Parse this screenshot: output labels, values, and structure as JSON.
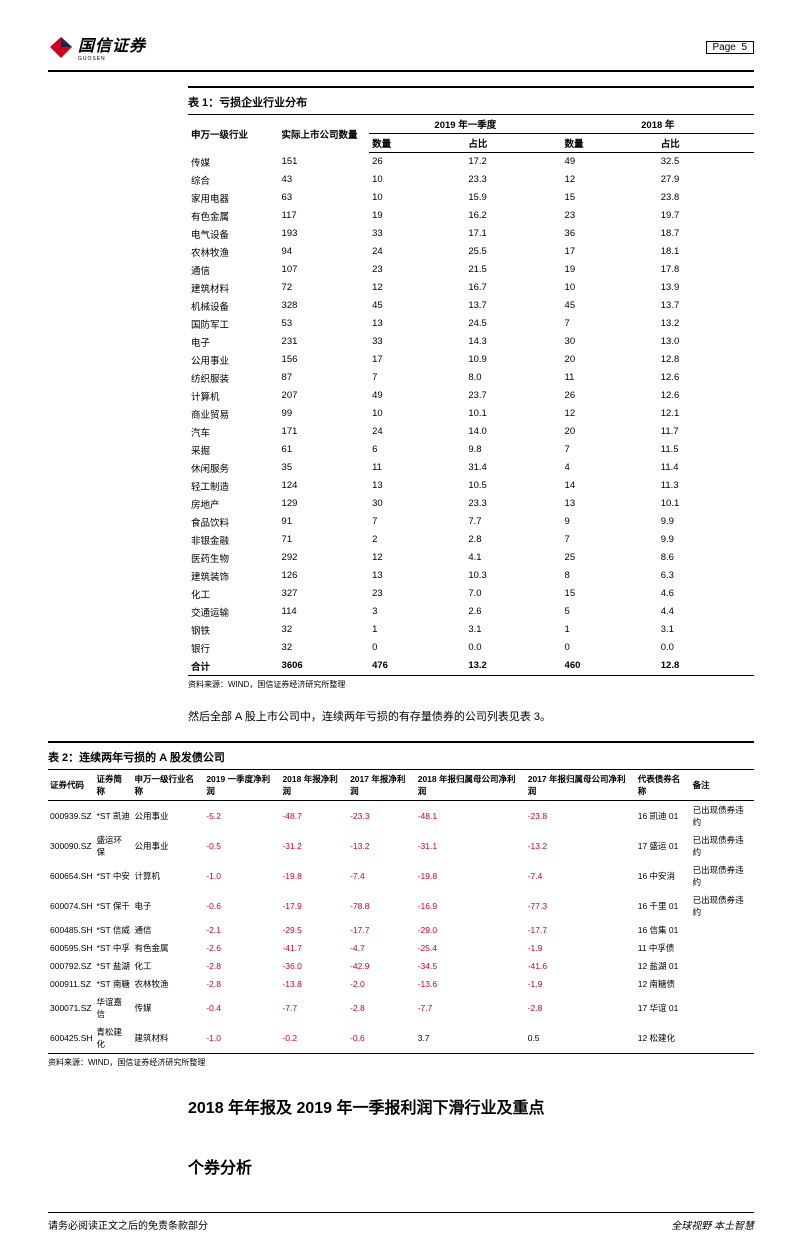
{
  "header": {
    "company": "国信证券",
    "pageLabel": "Page",
    "pageNum": "5",
    "sublabel": "GUOSEN"
  },
  "table1": {
    "title": "表 1：亏损企业行业分布",
    "col_industry": "申万一级行业",
    "col_listed": "实际上市公司数量",
    "group_2019": "2019 年一季度",
    "group_2018": "2018 年",
    "col_count": "数量",
    "col_ratio": "占比",
    "rows": [
      [
        "传媒",
        "151",
        "26",
        "17.2",
        "49",
        "32.5"
      ],
      [
        "综合",
        "43",
        "10",
        "23.3",
        "12",
        "27.9"
      ],
      [
        "家用电器",
        "63",
        "10",
        "15.9",
        "15",
        "23.8"
      ],
      [
        "有色金属",
        "117",
        "19",
        "16.2",
        "23",
        "19.7"
      ],
      [
        "电气设备",
        "193",
        "33",
        "17.1",
        "36",
        "18.7"
      ],
      [
        "农林牧渔",
        "94",
        "24",
        "25.5",
        "17",
        "18.1"
      ],
      [
        "通信",
        "107",
        "23",
        "21.5",
        "19",
        "17.8"
      ],
      [
        "建筑材料",
        "72",
        "12",
        "16.7",
        "10",
        "13.9"
      ],
      [
        "机械设备",
        "328",
        "45",
        "13.7",
        "45",
        "13.7"
      ],
      [
        "国防军工",
        "53",
        "13",
        "24.5",
        "7",
        "13.2"
      ],
      [
        "电子",
        "231",
        "33",
        "14.3",
        "30",
        "13.0"
      ],
      [
        "公用事业",
        "156",
        "17",
        "10.9",
        "20",
        "12.8"
      ],
      [
        "纺织服装",
        "87",
        "7",
        "8.0",
        "11",
        "12.6"
      ],
      [
        "计算机",
        "207",
        "49",
        "23.7",
        "26",
        "12.6"
      ],
      [
        "商业贸易",
        "99",
        "10",
        "10.1",
        "12",
        "12.1"
      ],
      [
        "汽车",
        "171",
        "24",
        "14.0",
        "20",
        "11.7"
      ],
      [
        "采掘",
        "61",
        "6",
        "9.8",
        "7",
        "11.5"
      ],
      [
        "休闲服务",
        "35",
        "11",
        "31.4",
        "4",
        "11.4"
      ],
      [
        "轻工制造",
        "124",
        "13",
        "10.5",
        "14",
        "11.3"
      ],
      [
        "房地产",
        "129",
        "30",
        "23.3",
        "13",
        "10.1"
      ],
      [
        "食品饮料",
        "91",
        "7",
        "7.7",
        "9",
        "9.9"
      ],
      [
        "非银金融",
        "71",
        "2",
        "2.8",
        "7",
        "9.9"
      ],
      [
        "医药生物",
        "292",
        "12",
        "4.1",
        "25",
        "8.6"
      ],
      [
        "建筑装饰",
        "126",
        "13",
        "10.3",
        "8",
        "6.3"
      ],
      [
        "化工",
        "327",
        "23",
        "7.0",
        "15",
        "4.6"
      ],
      [
        "交通运输",
        "114",
        "3",
        "2.6",
        "5",
        "4.4"
      ],
      [
        "钢铁",
        "32",
        "1",
        "3.1",
        "1",
        "3.1"
      ],
      [
        "银行",
        "32",
        "0",
        "0.0",
        "0",
        "0.0"
      ]
    ],
    "total": [
      "合计",
      "3606",
      "476",
      "13.2",
      "460",
      "12.8"
    ],
    "source": "资料来源：WIND，国信证券经济研究所整理"
  },
  "bodyText": "然后全部 A 股上市公司中，连续两年亏损的有存量债券的公司列表见表 3。",
  "table2": {
    "title": "表 2：连续两年亏损的 A 股发债公司",
    "cols": [
      "证券代码",
      "证券简称",
      "申万一级行业名称",
      "2019 一季度净利润",
      "2018 年报净利润",
      "2017 年报净利润",
      "2018 年报归属母公司净利润",
      "2017 年报归属母公司净利润",
      "代表债券名称",
      "备注"
    ],
    "rows": [
      [
        "000939.SZ",
        "*ST 凯迪",
        "公用事业",
        "-5.2",
        "-48.7",
        "-23.3",
        "-48.1",
        "-23.8",
        "16 凯迪 01",
        "已出现债券违约"
      ],
      [
        "300090.SZ",
        "盛运环保",
        "公用事业",
        "-0.5",
        "-31.2",
        "-13.2",
        "-31.1",
        "-13.2",
        "17 盛运 01",
        "已出现债券违约"
      ],
      [
        "600654.SH",
        "*ST 中安",
        "计算机",
        "-1.0",
        "-19.8",
        "-7.4",
        "-19.8",
        "-7.4",
        "16 中安消",
        "已出现债券违约"
      ],
      [
        "600074.SH",
        "*ST 保千",
        "电子",
        "-0.6",
        "-17.9",
        "-78.8",
        "-16.9",
        "-77.3",
        "16 千里 01",
        "已出现债券违约"
      ],
      [
        "600485.SH",
        "*ST 信威",
        "通信",
        "-2.1",
        "-29.5",
        "-17.7",
        "-29.0",
        "-17.7",
        "16 信集 01",
        ""
      ],
      [
        "600595.SH",
        "*ST 中孚",
        "有色金属",
        "-2.6",
        "-41.7",
        "-4.7",
        "-25.4",
        "-1.9",
        "11 中孚债",
        ""
      ],
      [
        "000792.SZ",
        "*ST 盐湖",
        "化工",
        "-2.8",
        "-36.0",
        "-42.9",
        "-34.5",
        "-41.6",
        "12 盐湖 01",
        ""
      ],
      [
        "000911.SZ",
        "*ST 南糖",
        "农林牧渔",
        "-2.8",
        "-13.8",
        "-2.0",
        "-13.6",
        "-1.9",
        "12 南糖债",
        ""
      ],
      [
        "300071.SZ",
        "华谊嘉信",
        "传媒",
        "-0.4",
        "-7.7",
        "-2.8",
        "-7.7",
        "-2.8",
        "17 华谊 01",
        ""
      ],
      [
        "600425.SH",
        "青松建化",
        "建筑材料",
        "-1.0",
        "-0.2",
        "-0.6",
        "3.7",
        "0.5",
        "12 松建化",
        ""
      ]
    ],
    "source": "资料来源：WIND，国信证券经济研究所整理"
  },
  "sectionTitle1": "2018 年年报及 2019 年一季报利润下滑行业及重点",
  "sectionTitle2": "个券分析",
  "footer": {
    "left": "请务必阅读正文之后的免责条款部分",
    "right": "全球视野  本土智慧"
  }
}
